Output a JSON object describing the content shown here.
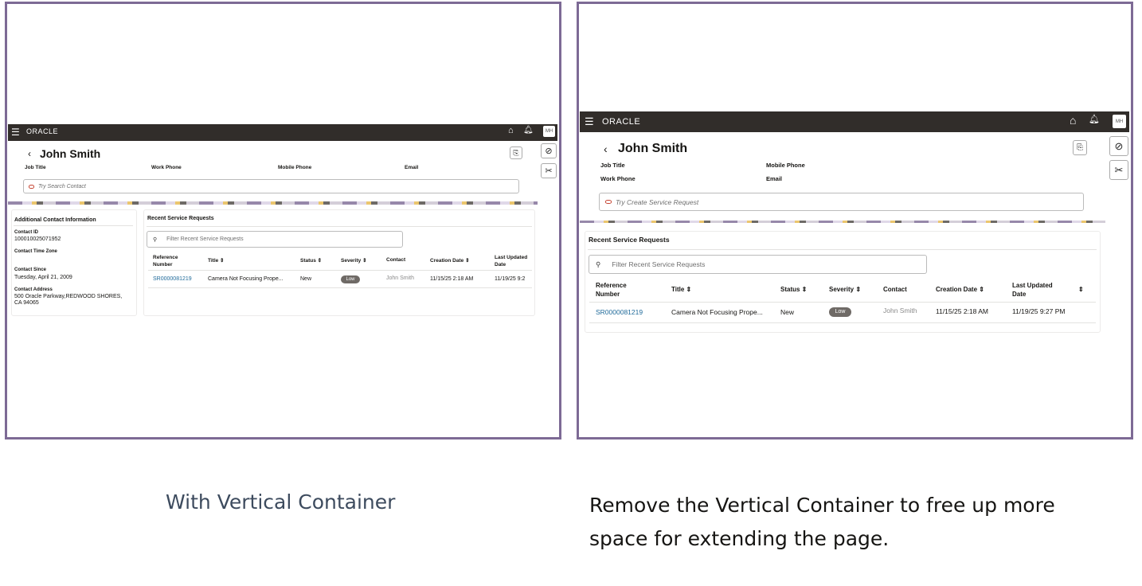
{
  "left": {
    "header": {
      "logo": "ORACLE",
      "avatar": "MH"
    },
    "contact_name": "John Smith",
    "fields": [
      "Job Title",
      "Work Phone",
      "Mobile Phone",
      "Email"
    ],
    "search_placeholder": "Try Search Contact",
    "side_panel": {
      "title": "Additional Contact Information",
      "items": [
        {
          "label": "Contact ID",
          "value": "100010025071952"
        },
        {
          "label": "Contact Time Zone",
          "value": ""
        },
        {
          "label": "Contact Since",
          "value": "Tuesday, April 21, 2009"
        },
        {
          "label": "Contact Address",
          "value": "500 Oracle Parkway,REDWOOD SHORES,",
          "value2": "CA 94065"
        }
      ]
    },
    "requests": {
      "title": "Recent Service Requests",
      "filter_placeholder": "Filter Recent Service Requests",
      "columns": [
        "Reference",
        "Number",
        "Title",
        "Status",
        "Severity",
        "Contact",
        "Creation Date",
        "Last Updated",
        "Date"
      ],
      "row": {
        "ref": "SR0000081219",
        "title": "Camera Not Focusing Prope...",
        "status": "New",
        "severity": "Low",
        "contact": "John Smith",
        "created": "11/15/25 2:18 AM",
        "updated": "11/19/25 9:2"
      }
    }
  },
  "right": {
    "header": {
      "logo": "ORACLE",
      "avatar": "MH"
    },
    "contact_name": "John Smith",
    "fields": [
      "Job Title",
      "Mobile Phone",
      "Work Phone",
      "Email"
    ],
    "search_placeholder": "Try Create Service Request",
    "requests": {
      "title": "Recent Service Requests",
      "filter_placeholder": "Filter Recent Service Requests",
      "columns": [
        "Reference",
        "Number",
        "Title",
        "Status",
        "Severity",
        "Contact",
        "Creation Date",
        "Last Updated",
        "Date"
      ],
      "row": {
        "ref": "SR0000081219",
        "title": "Camera Not Focusing Prope...",
        "status": "New",
        "severity": "Low",
        "contact": "John Smith",
        "created": "11/15/25 2:18 AM",
        "updated": "11/19/25 9:27 PM"
      }
    }
  },
  "captions": {
    "left": "With Vertical Container",
    "right_line1": "Remove the Vertical Container to free up more",
    "right_line2": "space for extending the page."
  },
  "colors": {
    "frame": "#7d6a95",
    "header": "#312d2a",
    "link": "#1f6a9a",
    "severity_low": "#6f6a66"
  }
}
